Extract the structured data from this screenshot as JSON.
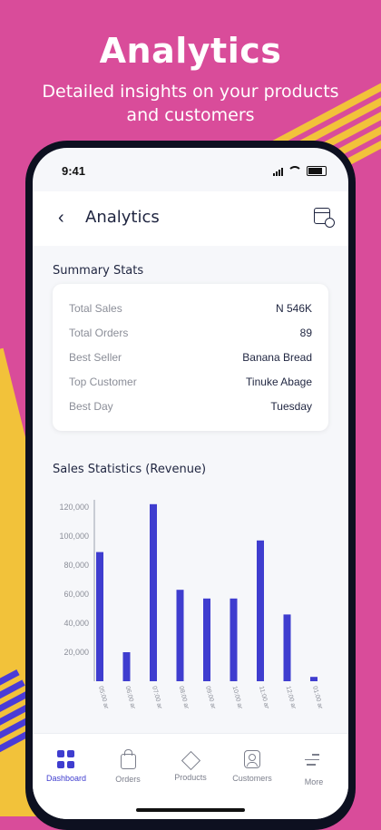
{
  "hero": {
    "title": "Analytics",
    "subtitle": "Detailed insights on your products and customers"
  },
  "status_bar": {
    "time": "9:41"
  },
  "app_bar": {
    "title": "Analytics",
    "back_icon": "chevron-left-icon",
    "action_icon": "calendar-clock-icon"
  },
  "summary": {
    "title": "Summary Stats",
    "rows": [
      {
        "label": "Total Sales",
        "value": "N 546K"
      },
      {
        "label": "Total Orders",
        "value": "89"
      },
      {
        "label": "Best Seller",
        "value": "Banana Bread"
      },
      {
        "label": "Top Customer",
        "value": "Tinuke Abage"
      },
      {
        "label": "Best Day",
        "value": "Tuesday"
      }
    ]
  },
  "chart_data": {
    "type": "bar",
    "title": "Sales Statistics (Revenue)",
    "categories": [
      "05:00 am",
      "06:00 am",
      "07:00 am",
      "08:00 am",
      "09:00 am",
      "10:00 am",
      "11:00 am",
      "12:00 am",
      "01:00 am"
    ],
    "values": [
      89000,
      20000,
      122000,
      63000,
      57000,
      57000,
      97000,
      46000,
      3000
    ],
    "yticks": [
      "120,000",
      "100,000",
      "80,000",
      "60,000",
      "40,000",
      "20,000"
    ],
    "ylim": [
      0,
      125000
    ],
    "bar_color": "#3f3dcf",
    "grid": false
  },
  "bottom_nav": [
    {
      "label": "Dashboard",
      "icon": "dashboard-icon",
      "active": true
    },
    {
      "label": "Orders",
      "icon": "shopping-bag-icon",
      "active": false
    },
    {
      "label": "Products",
      "icon": "box-icon",
      "active": false
    },
    {
      "label": "Customers",
      "icon": "customer-icon",
      "active": false
    },
    {
      "label": "More",
      "icon": "menu-icon",
      "active": false
    }
  ],
  "colors": {
    "background": "#d94c9a",
    "accent_yellow": "#f2c23a",
    "primary": "#3f3dcf",
    "text_dark": "#1f2540"
  }
}
